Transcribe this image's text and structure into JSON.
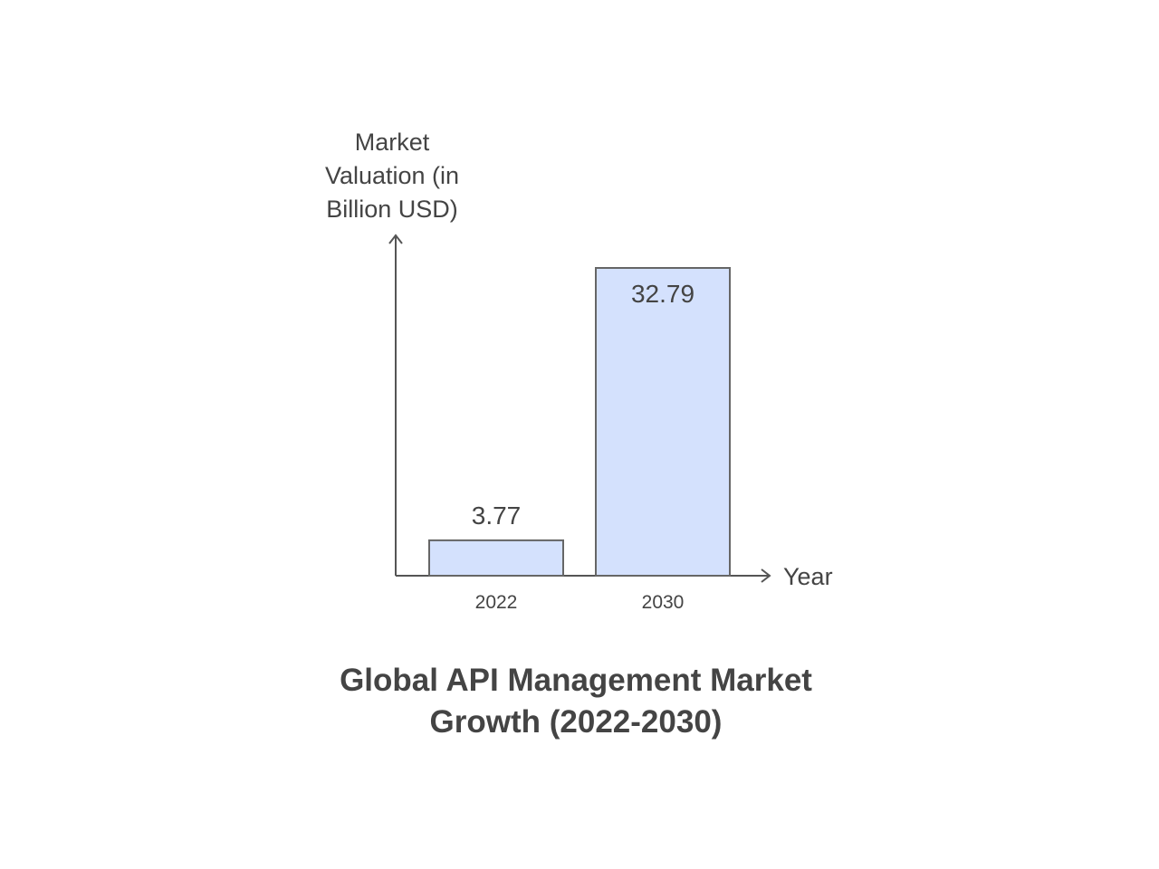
{
  "chart_data": {
    "type": "bar",
    "title": "Global API Management Market Growth (2022-2030)",
    "title_lines": [
      "Global API Management Market",
      "Growth (2022-2030)"
    ],
    "ylabel": "Market Valuation (in Billion USD)",
    "ylabel_lines": [
      "Market",
      "Valuation (in",
      "Billion USD)"
    ],
    "xlabel": "Year",
    "categories": [
      "2022",
      "2030"
    ],
    "values": [
      3.77,
      32.79
    ],
    "data_labels": [
      "3.77",
      "32.79"
    ],
    "ylim": [
      0,
      32.79
    ],
    "grid": false,
    "legend": "none",
    "bar_color": "#d4e1fd",
    "bar_stroke": "#666666",
    "axis_color": "#555555",
    "text_color": "#444444"
  }
}
